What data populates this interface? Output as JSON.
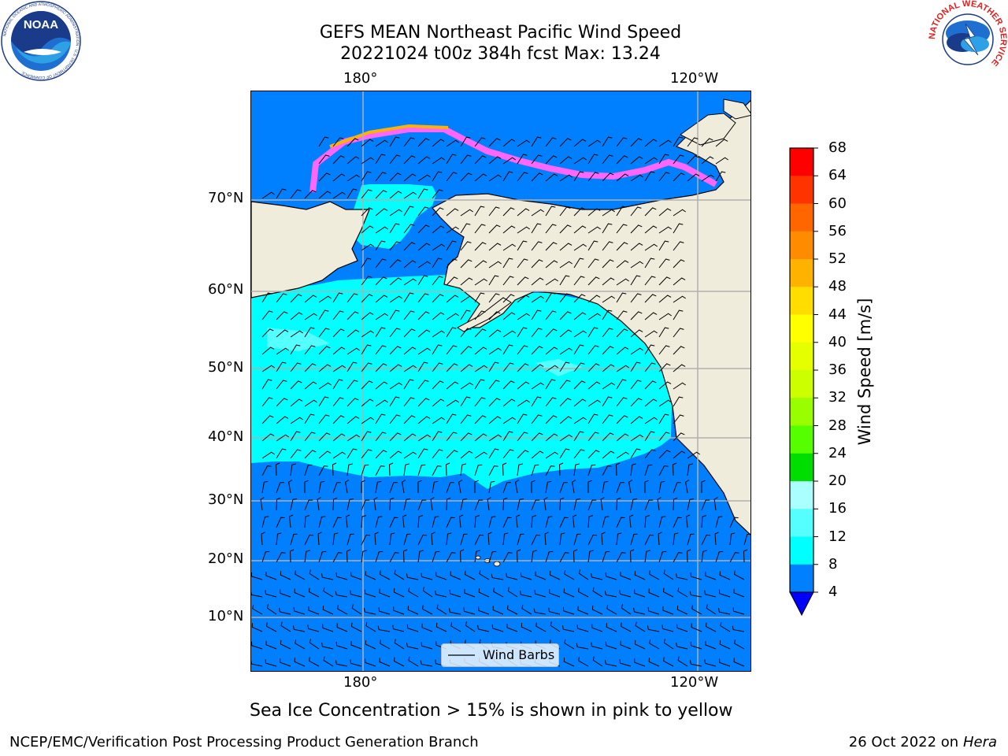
{
  "title": {
    "line1": "GEFS MEAN Northeast Pacific Wind Speed",
    "line2": "20221024 t00z 384h fcst   Max: 13.24"
  },
  "axes": {
    "top_lon": [
      "180°",
      "120°W"
    ],
    "bottom_lon": [
      "180°",
      "120°W"
    ],
    "lat": [
      "70°N",
      "60°N",
      "50°N",
      "40°N",
      "30°N",
      "20°N",
      "10°N"
    ]
  },
  "colorbar": {
    "label": "Wind Speed [m/s]",
    "ticks": [
      "68",
      "64",
      "60",
      "56",
      "52",
      "48",
      "44",
      "40",
      "36",
      "32",
      "28",
      "24",
      "20",
      "16",
      "12",
      "8",
      "4"
    ],
    "colors": [
      "#ff0000",
      "#ff3300",
      "#ff6600",
      "#ff8c00",
      "#ffb300",
      "#ffdd00",
      "#ffff00",
      "#e6ff00",
      "#ccff00",
      "#99ff00",
      "#55ff00",
      "#00dd00",
      "#55ff77",
      "#aaffff",
      "#55ffff",
      "#00ffff",
      "#0080ff"
    ],
    "extend_color": "#0000ff"
  },
  "legend": {
    "label": "Wind Barbs"
  },
  "note": "Sea Ice Concentration > 15% is shown in pink to yellow",
  "footer": {
    "left": "NCEP/EMC/Verification Post Processing Product Generation Branch",
    "right_prefix": "26 Oct 2022 on ",
    "right_host": "Hera"
  },
  "logos": {
    "left": {
      "name": "noaa-logo",
      "text": "NOAA",
      "ring_text": "NATIONAL OCEANIC AND ATMOSPHERIC ADMINISTRATION · U.S. DEPARTMENT OF COMMERCE"
    },
    "right": {
      "name": "nws-logo",
      "ring_text": "NATIONAL WEATHER SERVICE"
    }
  },
  "map_colors": {
    "land": "#efecdc",
    "ocean_low": "#0080ff",
    "ocean_mid": "#00ffff",
    "ocean_mid2": "#55ffff",
    "ice_pink": "#ff66ff",
    "ice_orange": "#ffb300",
    "grid": "#b0b0b0"
  }
}
